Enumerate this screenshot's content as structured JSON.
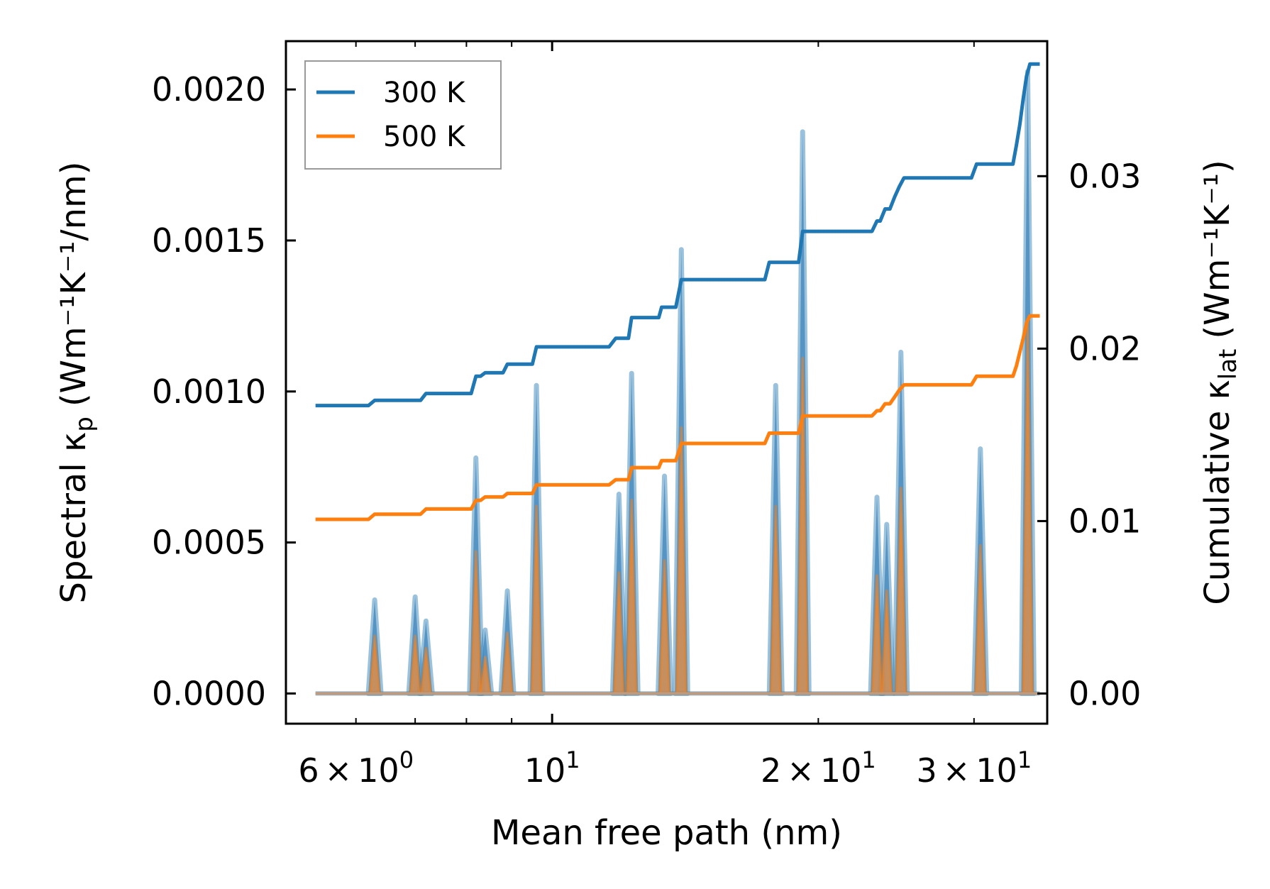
{
  "chart_data": {
    "type": "line",
    "title": "",
    "xlabel": "Mean free path (nm)",
    "xscale": "log",
    "xlim": [
      5.0,
      36.3
    ],
    "ylabel_left": {
      "base": "Spectral κ",
      "sub": "p",
      "units": "(Wm⁻¹K⁻¹/nm)"
    },
    "ylabel_right": {
      "base": "Cumulative κ",
      "sub": "lat",
      "units": "(Wm⁻¹K⁻¹)"
    },
    "ylim_left": [
      -0.0001,
      0.00216
    ],
    "ylim_right": [
      -0.00175,
      0.03783
    ],
    "yticks_left": [
      "0.0000",
      "0.0005",
      "0.0010",
      "0.0015",
      "0.0020"
    ],
    "yticks_left_values": [
      0,
      0.0005,
      0.001,
      0.0015,
      0.002
    ],
    "yticks_right": [
      "0.00",
      "0.01",
      "0.02",
      "0.03"
    ],
    "yticks_right_values": [
      0,
      0.01,
      0.02,
      0.03
    ],
    "xticks": [
      {
        "value": 6,
        "mantissa": "6",
        "base": "10",
        "exp": "0"
      },
      {
        "value": 10,
        "mantissa": "",
        "base": "10",
        "exp": "1"
      },
      {
        "value": 20,
        "mantissa": "2",
        "base": "10",
        "exp": "1"
      },
      {
        "value": 30,
        "mantissa": "3",
        "base": "10",
        "exp": "1"
      }
    ],
    "legend": {
      "position": "top-left",
      "entries": [
        "300 K",
        "500 K"
      ]
    },
    "colors": {
      "300 K": "#1f77b4",
      "500 K": "#ff7f0e",
      "fill_300": "#5b8fc1",
      "fill_500": "#d08a4c"
    },
    "peaks": [
      {
        "x": 6.3,
        "h300": 0.00031,
        "h500": 0.00019
      },
      {
        "x": 7.0,
        "h300": 0.00032,
        "h500": 0.00019
      },
      {
        "x": 7.2,
        "h300": 0.00024,
        "h500": 0.00015
      },
      {
        "x": 8.2,
        "h300": 0.00078,
        "h500": 0.00047
      },
      {
        "x": 8.4,
        "h300": 0.00021,
        "h500": 0.00012
      },
      {
        "x": 8.9,
        "h300": 0.00034,
        "h500": 0.0002
      },
      {
        "x": 9.6,
        "h300": 0.00102,
        "h500": 0.00062
      },
      {
        "x": 11.9,
        "h300": 0.00066,
        "h500": 0.0004
      },
      {
        "x": 12.3,
        "h300": 0.00106,
        "h500": 0.00064
      },
      {
        "x": 13.4,
        "h300": 0.00072,
        "h500": 0.00044
      },
      {
        "x": 14.0,
        "h300": 0.00147,
        "h500": 0.00088
      },
      {
        "x": 17.9,
        "h300": 0.00102,
        "h500": 0.00062
      },
      {
        "x": 19.2,
        "h300": 0.00186,
        "h500": 0.00111
      },
      {
        "x": 23.3,
        "h300": 0.00065,
        "h500": 0.00039
      },
      {
        "x": 23.9,
        "h300": 0.00056,
        "h500": 0.00034
      },
      {
        "x": 24.8,
        "h300": 0.00113,
        "h500": 0.00068
      },
      {
        "x": 30.5,
        "h300": 0.00081,
        "h500": 0.00049
      },
      {
        "x": 34.5,
        "h300": 0.00206,
        "h500": 0.00124
      }
    ],
    "cumulative": {
      "x": [
        5.4,
        5.5,
        5.6,
        5.8,
        6.2,
        6.3,
        6.5,
        7.0,
        7.1,
        7.2,
        7.3,
        8.1,
        8.2,
        8.3,
        8.4,
        8.5,
        8.8,
        8.9,
        9.2,
        9.5,
        9.6,
        11.6,
        11.8,
        12.0,
        12.2,
        12.3,
        12.5,
        13.2,
        13.3,
        13.6,
        13.8,
        14.0,
        14.2,
        17.4,
        17.6,
        18.7,
        19.0,
        19.2,
        22.8,
        23.0,
        23.3,
        23.5,
        23.8,
        24.1,
        24.4,
        24.7,
        25.0,
        29.8,
        30.2,
        30.5,
        33.2,
        33.5,
        33.8,
        34.1,
        34.4,
        34.7,
        35.2,
        35.6
      ],
      "300 K": [
        0.0167,
        0.0167,
        0.0167,
        0.0167,
        0.0167,
        0.017,
        0.017,
        0.017,
        0.017,
        0.0174,
        0.0174,
        0.0174,
        0.0184,
        0.0184,
        0.0186,
        0.0186,
        0.0186,
        0.0191,
        0.0191,
        0.0191,
        0.0201,
        0.0201,
        0.0206,
        0.0206,
        0.0206,
        0.0218,
        0.0218,
        0.0218,
        0.0224,
        0.0224,
        0.0224,
        0.024,
        0.024,
        0.024,
        0.025,
        0.025,
        0.025,
        0.0268,
        0.0268,
        0.0268,
        0.0274,
        0.0274,
        0.0281,
        0.0281,
        0.0288,
        0.0294,
        0.0299,
        0.0299,
        0.0307,
        0.0307,
        0.0307,
        0.0318,
        0.033,
        0.0345,
        0.0358,
        0.0365,
        0.0365,
        0.0365
      ],
      "500 K": [
        0.0101,
        0.0101,
        0.0101,
        0.0101,
        0.0101,
        0.0104,
        0.0104,
        0.0104,
        0.0104,
        0.0107,
        0.0107,
        0.0107,
        0.0112,
        0.0112,
        0.0114,
        0.0114,
        0.0114,
        0.0116,
        0.0116,
        0.0116,
        0.0121,
        0.0121,
        0.0124,
        0.0124,
        0.0124,
        0.0131,
        0.0131,
        0.0131,
        0.0135,
        0.0135,
        0.0135,
        0.0145,
        0.0145,
        0.0145,
        0.0151,
        0.0151,
        0.0151,
        0.0161,
        0.0161,
        0.0161,
        0.0164,
        0.0164,
        0.0168,
        0.0168,
        0.0172,
        0.0176,
        0.0179,
        0.0179,
        0.0184,
        0.0184,
        0.0184,
        0.019,
        0.0198,
        0.0206,
        0.0215,
        0.0219,
        0.0219,
        0.0219
      ]
    }
  }
}
